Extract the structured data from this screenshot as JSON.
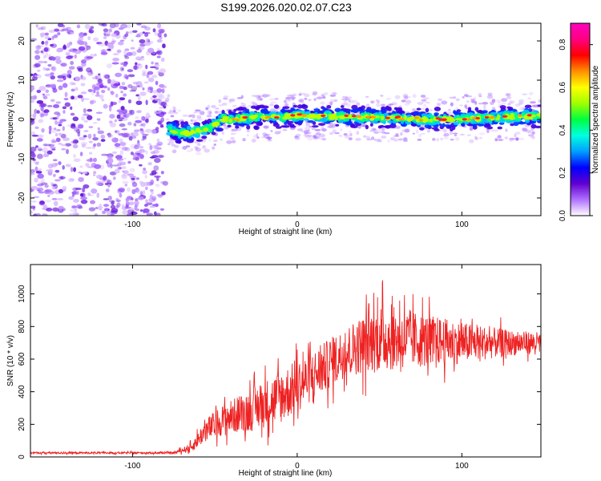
{
  "chart_data": [
    {
      "type": "heatmap",
      "title": "S199.2026.020.02.07.C23",
      "xlabel": "Height of straight line (km)",
      "ylabel": "Frequency (Hz)",
      "xlim": [
        -162,
        148
      ],
      "ylim": [
        -24.5,
        24.5
      ],
      "xticks": [
        -100,
        0,
        100
      ],
      "yticks": [
        -20,
        -10,
        0,
        10,
        20
      ],
      "colorbar": {
        "label": "Normalized spectral amplitude",
        "range": [
          0.0,
          0.9
        ],
        "ticks": [
          0.0,
          0.2,
          0.4,
          0.6,
          0.8
        ],
        "colors": [
          "#ffffff",
          "#b070ff",
          "#6000d0",
          "#0000ff",
          "#00a0ff",
          "#00ffe0",
          "#00ff40",
          "#a0ff00",
          "#ffff00",
          "#ff9000",
          "#ff0000",
          "#ff0080",
          "#ff00c0"
        ]
      },
      "signal_band": {
        "description_free": true,
        "centerline": [
          [
            -78,
            -2.5
          ],
          [
            -70,
            -3.5
          ],
          [
            -60,
            -3.0
          ],
          [
            -52,
            -2.0
          ],
          [
            -45,
            0.2
          ],
          [
            -38,
            0.0
          ],
          [
            -30,
            0.5
          ],
          [
            -20,
            0.6
          ],
          [
            -10,
            0.6
          ],
          [
            0,
            1.0
          ],
          [
            20,
            0.8
          ],
          [
            40,
            0.6
          ],
          [
            60,
            0.4
          ],
          [
            80,
            0.0
          ],
          [
            100,
            0.2
          ],
          [
            120,
            0.5
          ],
          [
            140,
            0.8
          ],
          [
            148,
            0.8
          ]
        ],
        "onset_km": -80
      }
    },
    {
      "type": "line",
      "xlabel": "Height of straight line (km)",
      "ylabel": "SNR (10 * v/v)",
      "xlim": [
        -162,
        148
      ],
      "ylim": [
        0,
        1180
      ],
      "xticks": [
        -100,
        0,
        100
      ],
      "yticks": [
        0,
        200,
        400,
        600,
        800,
        1000
      ],
      "color": "#ee2222",
      "envelope": [
        {
          "x": -162,
          "base": 25,
          "amp": 10
        },
        {
          "x": -75,
          "base": 25,
          "amp": 10
        },
        {
          "x": -64,
          "base": 60,
          "amp": 50
        },
        {
          "x": -56,
          "base": 160,
          "amp": 130
        },
        {
          "x": -45,
          "base": 230,
          "amp": 170
        },
        {
          "x": -30,
          "base": 280,
          "amp": 230
        },
        {
          "x": -10,
          "base": 370,
          "amp": 300
        },
        {
          "x": 10,
          "base": 500,
          "amp": 280
        },
        {
          "x": 30,
          "base": 650,
          "amp": 280
        },
        {
          "x": 50,
          "base": 730,
          "amp": 380
        },
        {
          "x": 70,
          "base": 720,
          "amp": 320
        },
        {
          "x": 100,
          "base": 700,
          "amp": 230
        },
        {
          "x": 130,
          "base": 700,
          "amp": 140
        },
        {
          "x": 148,
          "base": 700,
          "amp": 120
        }
      ]
    }
  ]
}
